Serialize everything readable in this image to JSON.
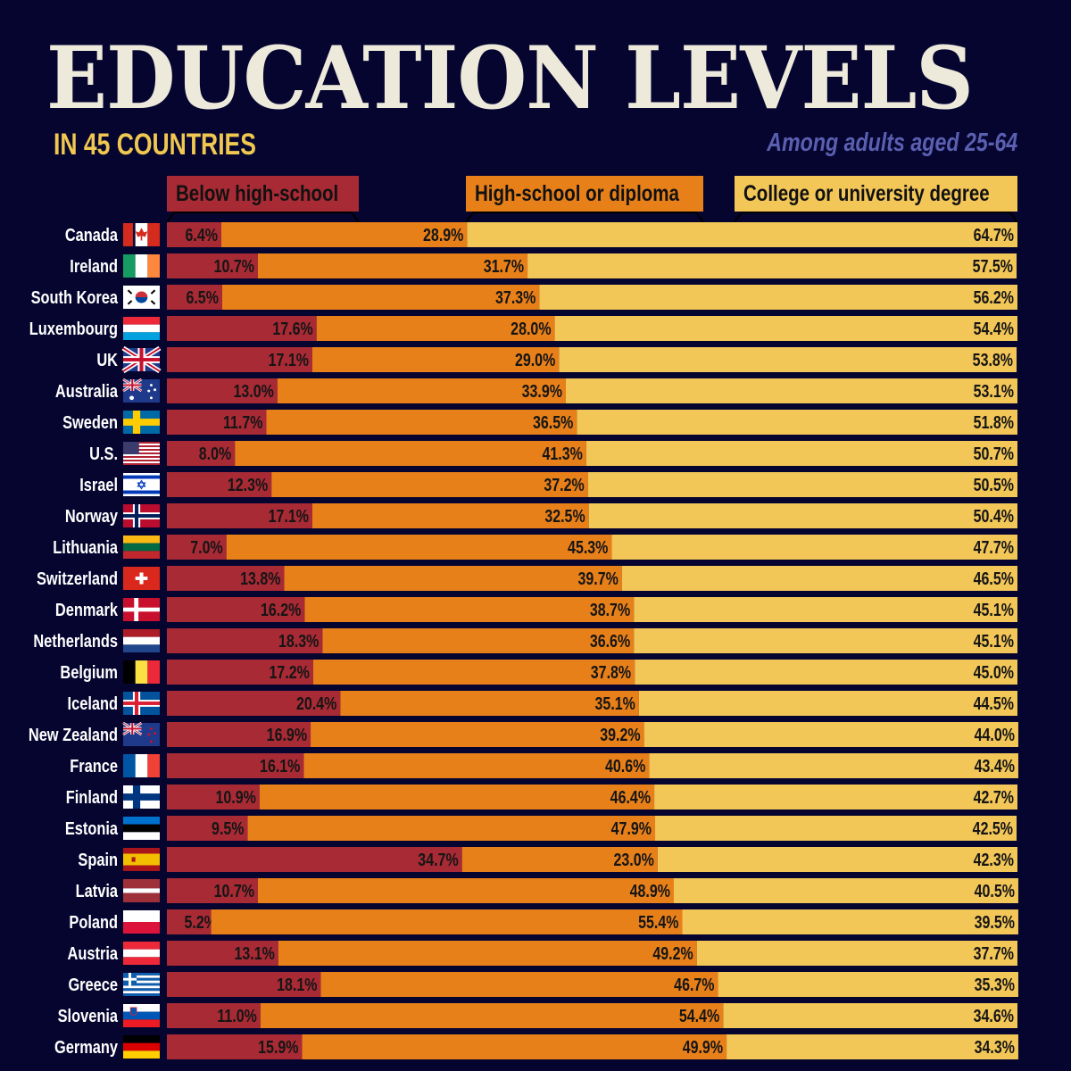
{
  "header": {
    "title": "EDUCATION LEVELS",
    "subtitle": "IN 45 COUNTRIES",
    "note": "Among adults aged 25-64"
  },
  "chart_data": {
    "type": "bar",
    "orientation": "horizontal",
    "stacked": true,
    "unit": "%",
    "xlim": [
      0,
      100
    ],
    "legend_placement": "top",
    "colors": {
      "below": "#a82a35",
      "high": "#e8801a",
      "college": "#f3c658",
      "background": "#050530"
    },
    "series": [
      {
        "name": "Below high-school",
        "key": "below"
      },
      {
        "name": "High-school or diploma",
        "key": "high"
      },
      {
        "name": "College or university degree",
        "key": "college"
      }
    ],
    "rows": [
      {
        "country": "Canada",
        "flag": "canada-flag",
        "below": 6.4,
        "high": 28.9,
        "college": 64.7
      },
      {
        "country": "Ireland",
        "flag": "ireland-flag",
        "below": 10.7,
        "high": 31.7,
        "college": 57.5
      },
      {
        "country": "South Korea",
        "flag": "south-korea-flag",
        "below": 6.5,
        "high": 37.3,
        "college": 56.2
      },
      {
        "country": "Luxembourg",
        "flag": "luxembourg-flag",
        "below": 17.6,
        "high": 28.0,
        "college": 54.4
      },
      {
        "country": "UK",
        "flag": "uk-flag",
        "below": 17.1,
        "high": 29.0,
        "college": 53.8
      },
      {
        "country": "Australia",
        "flag": "australia-flag",
        "below": 13.0,
        "high": 33.9,
        "college": 53.1
      },
      {
        "country": "Sweden",
        "flag": "sweden-flag",
        "below": 11.7,
        "high": 36.5,
        "college": 51.8
      },
      {
        "country": "U.S.",
        "flag": "us-flag",
        "below": 8.0,
        "high": 41.3,
        "college": 50.7
      },
      {
        "country": "Israel",
        "flag": "israel-flag",
        "below": 12.3,
        "high": 37.2,
        "college": 50.5
      },
      {
        "country": "Norway",
        "flag": "norway-flag",
        "below": 17.1,
        "high": 32.5,
        "college": 50.4
      },
      {
        "country": "Lithuania",
        "flag": "lithuania-flag",
        "below": 7.0,
        "high": 45.3,
        "college": 47.7
      },
      {
        "country": "Switzerland",
        "flag": "switzerland-flag",
        "below": 13.8,
        "high": 39.7,
        "college": 46.5
      },
      {
        "country": "Denmark",
        "flag": "denmark-flag",
        "below": 16.2,
        "high": 38.7,
        "college": 45.1
      },
      {
        "country": "Netherlands",
        "flag": "netherlands-flag",
        "below": 18.3,
        "high": 36.6,
        "college": 45.1
      },
      {
        "country": "Belgium",
        "flag": "belgium-flag",
        "below": 17.2,
        "high": 37.8,
        "college": 45.0
      },
      {
        "country": "Iceland",
        "flag": "iceland-flag",
        "below": 20.4,
        "high": 35.1,
        "college": 44.5
      },
      {
        "country": "New Zealand",
        "flag": "new-zealand-flag",
        "below": 16.9,
        "high": 39.2,
        "college": 44.0
      },
      {
        "country": "France",
        "flag": "france-flag",
        "below": 16.1,
        "high": 40.6,
        "college": 43.4
      },
      {
        "country": "Finland",
        "flag": "finland-flag",
        "below": 10.9,
        "high": 46.4,
        "college": 42.7
      },
      {
        "country": "Estonia",
        "flag": "estonia-flag",
        "below": 9.5,
        "high": 47.9,
        "college": 42.5
      },
      {
        "country": "Spain",
        "flag": "spain-flag",
        "below": 34.7,
        "high": 23.0,
        "college": 42.3
      },
      {
        "country": "Latvia",
        "flag": "latvia-flag",
        "below": 10.7,
        "high": 48.9,
        "college": 40.5
      },
      {
        "country": "Poland",
        "flag": "poland-flag",
        "below": 5.2,
        "high": 55.4,
        "college": 39.5
      },
      {
        "country": "Austria",
        "flag": "austria-flag",
        "below": 13.1,
        "high": 49.2,
        "college": 37.7
      },
      {
        "country": "Greece",
        "flag": "greece-flag",
        "below": 18.1,
        "high": 46.7,
        "college": 35.3
      },
      {
        "country": "Slovenia",
        "flag": "slovenia-flag",
        "below": 11.0,
        "high": 54.4,
        "college": 34.6
      },
      {
        "country": "Germany",
        "flag": "germany-flag",
        "below": 15.9,
        "high": 49.9,
        "college": 34.3
      }
    ]
  }
}
